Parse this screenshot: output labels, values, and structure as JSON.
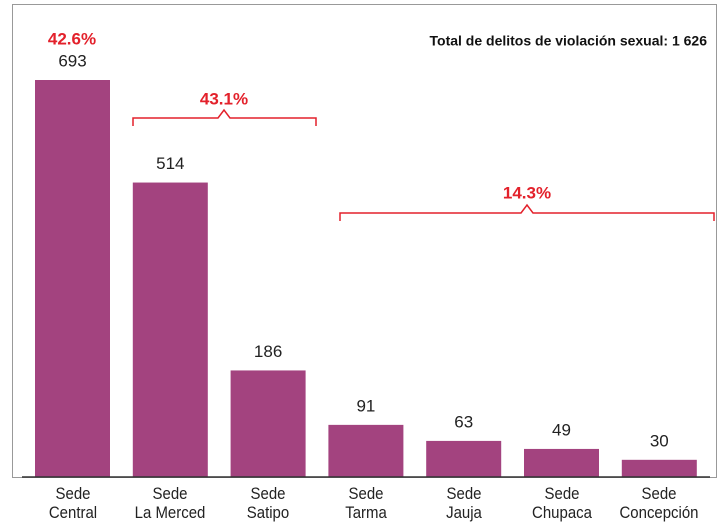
{
  "chart_data": {
    "type": "bar",
    "categories": [
      "Sede\nCentral",
      "Sede\nLa Merced",
      "Sede\nSatipo",
      "Sede\nTarma",
      "Sede\nJauja",
      "Sede\nChupaca",
      "Sede\nConcepción"
    ],
    "values": [
      693,
      514,
      186,
      91,
      63,
      49,
      30
    ],
    "color": "#a3437f",
    "annotations": [
      "42.6%",
      "43.1%",
      "14.3%",
      "Total de delitos de violación sexual: 1 626"
    ],
    "annotation_color": "#e3212b"
  }
}
